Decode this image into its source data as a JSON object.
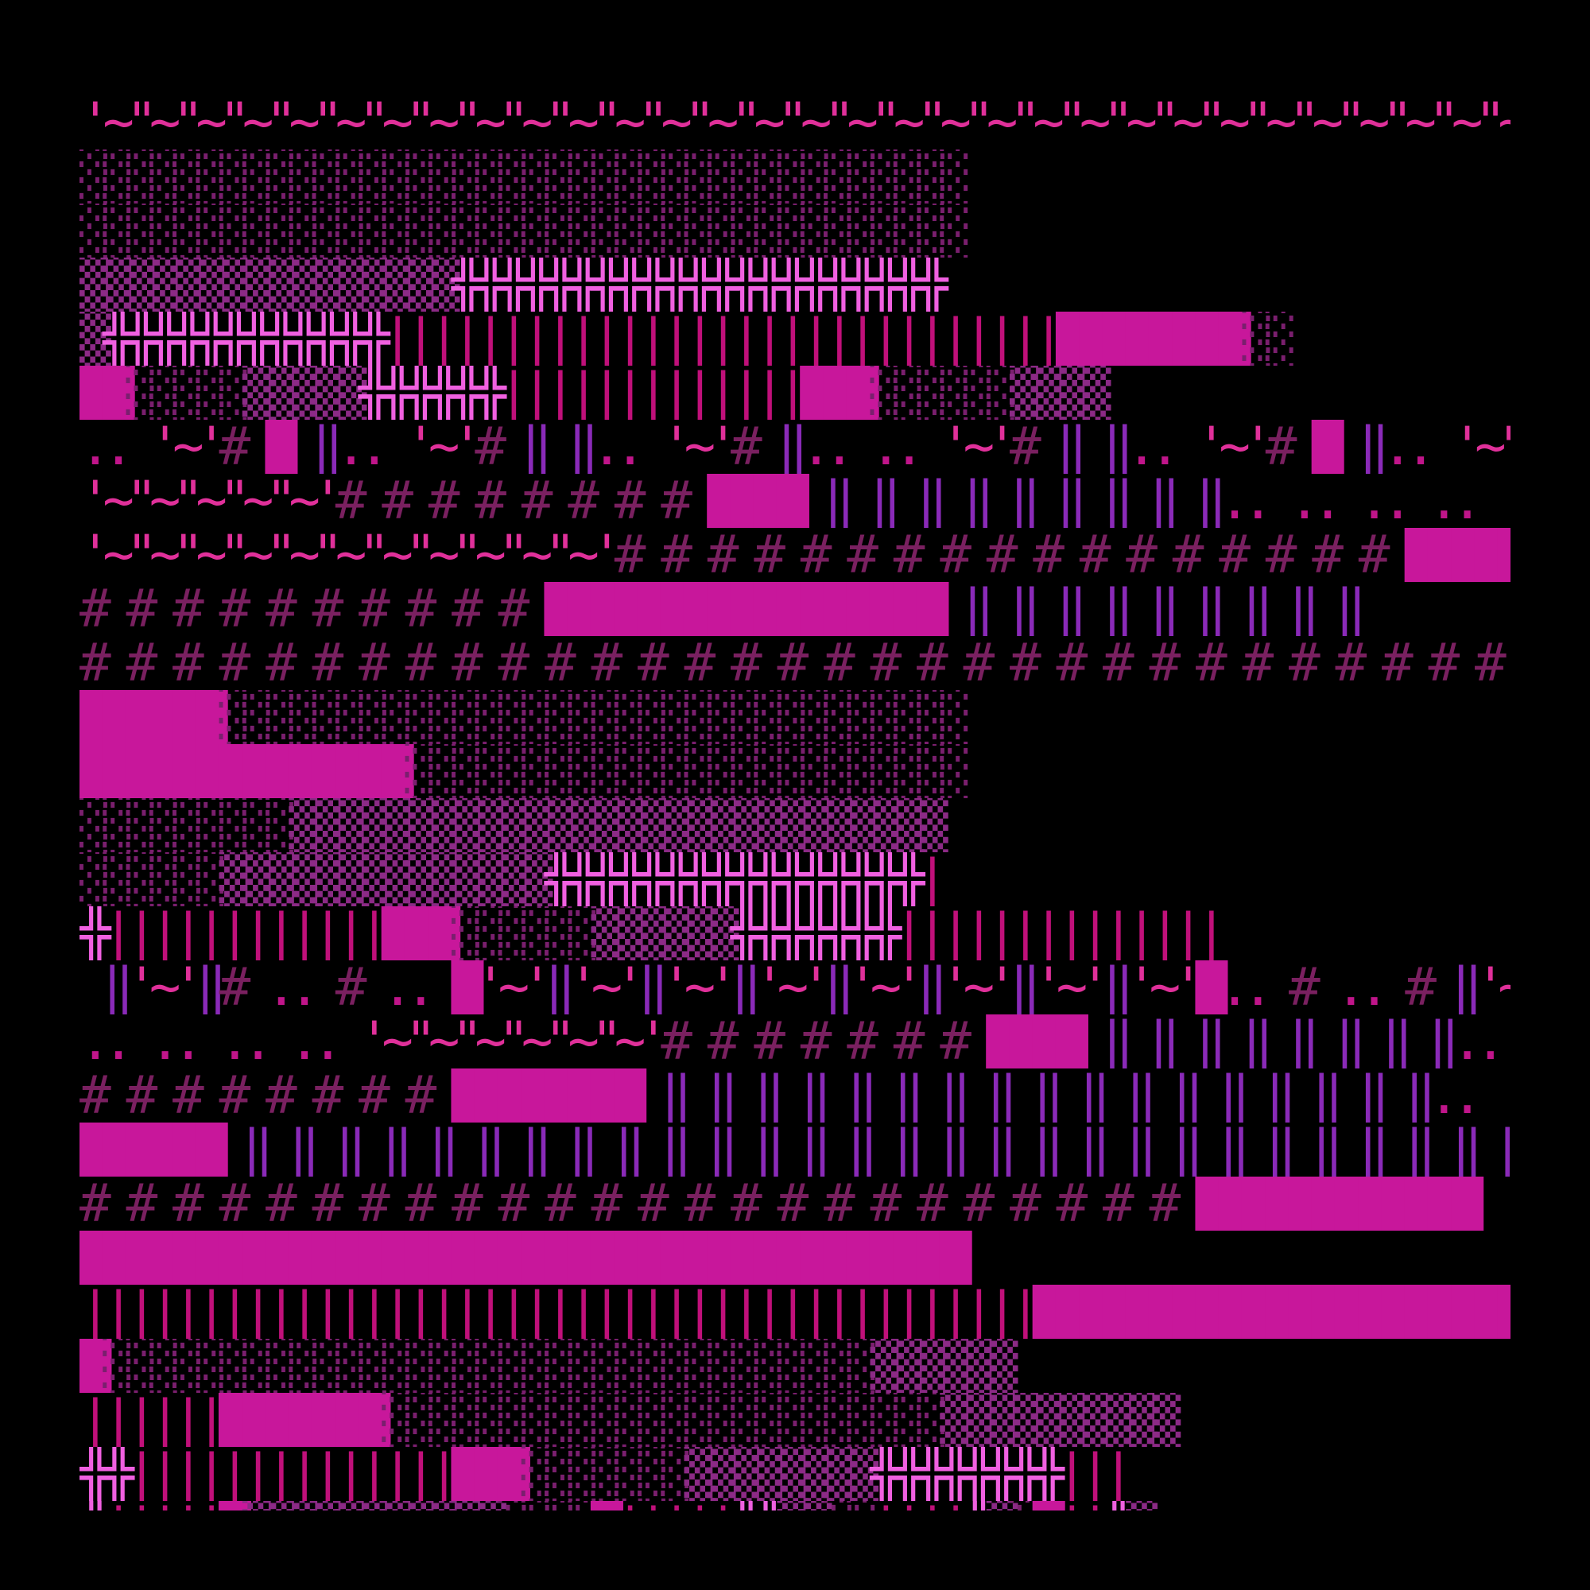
{
  "palette": {
    "background": "#000000",
    "dim_dots": "#7a1f6e",
    "mid_dots": "#8c2a86",
    "dense_dots": "#6e3aa0",
    "block": "#c8179b",
    "cross": "#f060e0",
    "bar": "#c0107a",
    "double_bar": "#8a2ab8",
    "hash": "#7a2060",
    "tilde": "#e0309a",
    "dot_pair": "#c0158a"
  },
  "glyph_classes": {
    "░": "dim_dots",
    "▒": "mid_dots",
    "▓": "dense_dots",
    "█": "block",
    "╬": "cross",
    "|": "bar",
    "‖": "double_bar",
    "#": "hash",
    "~": "tilde",
    "'": "tilde",
    "\"": "tilde",
    ".": "dot_pair",
    "╩": "cross",
    "╦": "cross"
  },
  "rows": [
    "'~\"~\"~\"~\"~\"~\"~\"~\"~\"~\"~\"~\"~\"~\"~\"~\"~\"~\"~\"~\"~\"~\"~\"~\"~\"~\"~\"~\"~\"~\"~\"~\"~\"~\"~\"~\"~\"~\"~\"~\"~\"~\"~\"~\"~\"~\"~\"~\"~\"~\"~\"~\"~\"~\"~\"~\"~\"~\"~\"~\"~\"~\"~\"~\"~\"~\"~\"~\"~\"~\"~\"~\"~\"~\"~\"~\"~\"~\"~'\"# # # # # # # # # # # # #",
    "░░░░░░░░░░░░░░░░░░░░░░░░░░░░░░░░░░░░░░",
    "░░░░░░░░░░░░░░░░░░░░░░░░░░░░░░░░░░░░░░",
    "▒▒▒▒▒▒▒▒▒▒▒▒▒▒▒▒╬╬╬╬╬╬╬╬╬╬╬╬╬╬╬╬╬╬╬╬╬",
    "▒╬╬╬╬╬╬╬╬╬╬╬╬|||||||||||||||||||||||||||||████████░░",
    "██░░░░░▒▒▒▒▒╬╬╬╬╬╬|||||||||||||███░░░░░░▒▒▒▒",
    ".. '~'# █ ‖.. '~'# ‖ ‖.. '~'# ‖.. .. '~'# ‖ ‖.. '~'# █ ‖.. '~\"~'# █ ‖.. '~\"~'# █",
    "'~\"~\"~\"~\"~'# # # # # # # # ████ ‖ ‖ ‖ ‖ ‖ ‖ ‖ ‖ ‖.. .. .. .. .. .. .. .. ..   '~'",
    "'~\"~\"~\"~\"~\"~\"~\"~\"~\"~\"~'# # # # # # # # # # # # # # # # # ████████████",
    "# # # # # # # # # # █████████████████ ‖ ‖ ‖ ‖ ‖ ‖ ‖ ‖ ‖",
    "# # # # # # # # # # # # # # # # # # # # # # # # # # # # # # # # # # # # #",
    "██████░░░░░░░░░░░░░░░░░░░░░░░░░░░░░░░░",
    "██████████████░░░░░░░░░░░░░░░░░░░░░░░░",
    "░░░░░░░░░▒▒▒▒▒▒▒▒▒▒▒▒▒▒▒▒▒▒▒▒▒▒▒▒▒▒▒▒",
    "░░░░░░▒▒▒▒▒▒▒▒▒▒▒▒▒▒╬╬╬╬╬╬╬╬╬╬╬╬╬╬╬╬|",
    "╬||||||||||||███░░░░░░▒▒▒▒▒▒╬╬╬╬╬╬╬||||||||||||||",
    " ‖'~'‖# .. # .. █'~'‖'~'‖'~'‖'~'‖'~'‖'~'‖'~'‖'~'█.. # .. # ‖'~'‖.. # .. # ‖'~",
    ".. .. .. .. '~\"~\"~\"~\"~\"~'# # # # # # # ████ ‖ ‖ ‖ ‖ ‖ ‖ ‖ ‖.. .. .. .. .. .. .",
    "# # # # # # # # ████████ ‖ ‖ ‖ ‖ ‖ ‖ ‖ ‖ ‖ ‖ ‖ ‖ ‖ ‖ ‖ ‖ ‖.. .. .. .",
    "██████ ‖ ‖ ‖ ‖ ‖ ‖ ‖ ‖ ‖ ‖ ‖ ‖ ‖ ‖ ‖ ‖ ‖ ‖ ‖ ‖ ‖ ‖ ‖ ‖ ‖ ‖ ‖ ‖ ‖ ‖ ‖",
    "# # # # # # # # # # # # # # # # # # # # # # # # ████████████",
    "██████████████████████████████████████",
    "|||||||||||||||||||||||||||||||||||||||||████████████████████████",
    "█░░░░░░░░░░░░░░░░░░░░░░░░░░░░░░░░░▒▒▒▒▒▒",
    "||||||███████░░░░░░░░░░░░░░░░░░░░░░░░▒▒▒▒▒▒▒▒▒▒",
    "╬╬||||||||||||||███░░░░░░░▒▒▒▒▒▒▒▒╬╬╬╬╬╬╬╬|||",
    "╩|||||█▒▒▒▒▒▒▒▒▒▒▒░░░░█|||||╩╩▒▒░░||||╩▒░█||╩▒"
  ]
}
